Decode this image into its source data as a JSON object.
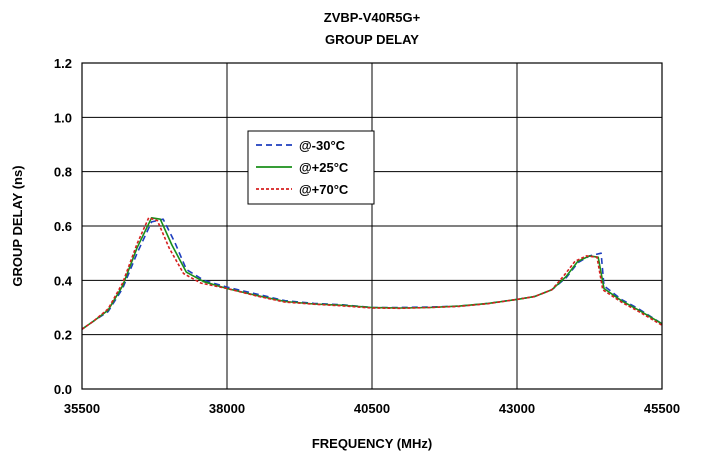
{
  "chart_data": {
    "type": "line",
    "title": "ZVBP-V40R5G+",
    "subtitle": "GROUP DELAY",
    "xlabel": "FREQUENCY (MHz)",
    "ylabel": "GROUP DELAY (ns)",
    "xlim": [
      35500,
      45500
    ],
    "ylim": [
      0.0,
      1.2
    ],
    "xticks": [
      35500,
      38000,
      40500,
      43000,
      45500
    ],
    "xtick_labels": [
      "35500",
      "38000",
      "40500",
      "43000",
      "45500"
    ],
    "yticks": [
      0.0,
      0.2,
      0.4,
      0.6,
      0.8,
      1.0,
      1.2
    ],
    "ytick_labels": [
      "0.0",
      "0.2",
      "0.4",
      "0.6",
      "0.8",
      "1.0",
      "1.2"
    ],
    "grid": true,
    "legend_position": "upper-left-center",
    "series": [
      {
        "name": "@-30°C",
        "color": "#1f3fbf",
        "dash": "dashed",
        "x": [
          35500,
          35700,
          35950,
          36200,
          36450,
          36700,
          36900,
          37100,
          37300,
          37600,
          38000,
          38500,
          39000,
          39500,
          40000,
          40500,
          41000,
          41500,
          42000,
          42500,
          43000,
          43300,
          43600,
          43850,
          44050,
          44250,
          44450,
          44500,
          44800,
          45100,
          45500
        ],
        "y": [
          0.22,
          0.25,
          0.285,
          0.37,
          0.5,
          0.615,
          0.625,
          0.54,
          0.44,
          0.4,
          0.375,
          0.35,
          0.325,
          0.315,
          0.31,
          0.3,
          0.3,
          0.302,
          0.305,
          0.315,
          0.33,
          0.34,
          0.365,
          0.41,
          0.465,
          0.49,
          0.5,
          0.38,
          0.33,
          0.295,
          0.24
        ]
      },
      {
        "name": "@+25°C",
        "color": "#1a8f1a",
        "dash": "solid",
        "x": [
          35500,
          35700,
          35950,
          36200,
          36450,
          36700,
          36850,
          37050,
          37300,
          37600,
          38000,
          38500,
          39000,
          39500,
          40000,
          40500,
          41000,
          41500,
          42000,
          42500,
          43000,
          43300,
          43600,
          43850,
          44050,
          44250,
          44400,
          44500,
          44800,
          45100,
          45500
        ],
        "y": [
          0.22,
          0.25,
          0.29,
          0.38,
          0.52,
          0.63,
          0.625,
          0.53,
          0.43,
          0.395,
          0.37,
          0.345,
          0.322,
          0.313,
          0.308,
          0.3,
          0.298,
          0.3,
          0.305,
          0.315,
          0.33,
          0.34,
          0.365,
          0.415,
          0.47,
          0.49,
          0.485,
          0.37,
          0.325,
          0.29,
          0.24
        ]
      },
      {
        "name": "@+70°C",
        "color": "#d62020",
        "dash": "dotted-dash",
        "x": [
          35500,
          35700,
          35950,
          36200,
          36450,
          36650,
          36800,
          37000,
          37250,
          37550,
          38000,
          38500,
          39000,
          39500,
          40000,
          40500,
          41000,
          41500,
          42000,
          42500,
          43000,
          43300,
          43600,
          43800,
          44000,
          44200,
          44380,
          44480,
          44800,
          45100,
          45500
        ],
        "y": [
          0.22,
          0.25,
          0.295,
          0.39,
          0.535,
          0.63,
          0.62,
          0.52,
          0.425,
          0.39,
          0.37,
          0.343,
          0.32,
          0.312,
          0.306,
          0.298,
          0.297,
          0.3,
          0.304,
          0.314,
          0.33,
          0.34,
          0.365,
          0.415,
          0.47,
          0.49,
          0.485,
          0.365,
          0.32,
          0.285,
          0.235
        ]
      }
    ]
  }
}
